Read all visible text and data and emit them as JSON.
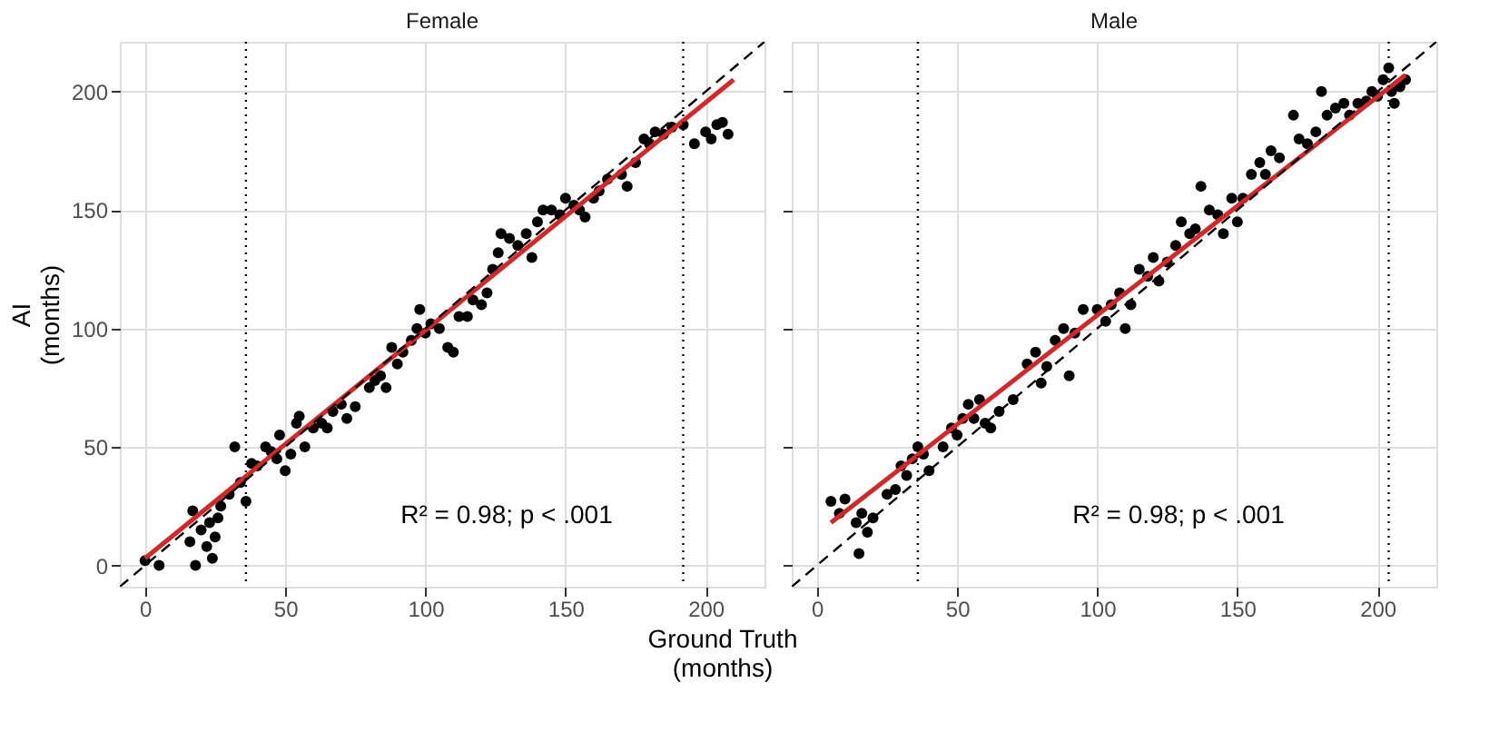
{
  "chart_data": [
    {
      "type": "scatter",
      "title": "Female",
      "ylabel": [
        "AI",
        "(months)"
      ],
      "xlabel": [
        "Ground Truth",
        "(months)"
      ],
      "xlim": [
        -9,
        221
      ],
      "ylim": [
        -9,
        221
      ],
      "xticks": [
        0,
        50,
        100,
        150,
        200
      ],
      "yticks": [
        0,
        50,
        100,
        150,
        200
      ],
      "grid": true,
      "annotations": [
        "R² = 0.98; p < .001"
      ],
      "series": [
        {
          "color": "#000000",
          "marker": "circle",
          "x": [
            0,
            5,
            16,
            17,
            18,
            20,
            22,
            23,
            24,
            25,
            26,
            27,
            30,
            32,
            34,
            36,
            38,
            40,
            43,
            45,
            47,
            48,
            50,
            52,
            54,
            55,
            57,
            60,
            63,
            65,
            67,
            70,
            72,
            75,
            80,
            82,
            84,
            86,
            88,
            90,
            92,
            95,
            97,
            98,
            100,
            102,
            105,
            108,
            110,
            112,
            115,
            117,
            120,
            122,
            124,
            126,
            127,
            130,
            133,
            136,
            138,
            140,
            142,
            145,
            148,
            150,
            153,
            155,
            157,
            160,
            162,
            165,
            170,
            172,
            175,
            178,
            180,
            182,
            185,
            188,
            192,
            196,
            200,
            202,
            204,
            206,
            208
          ],
          "values": [
            2,
            0,
            10,
            23,
            0,
            15,
            8,
            18,
            3,
            12,
            20,
            25,
            30,
            50,
            35,
            27,
            43,
            42,
            50,
            48,
            45,
            55,
            40,
            47,
            60,
            63,
            50,
            58,
            60,
            58,
            65,
            68,
            62,
            67,
            75,
            78,
            80,
            75,
            92,
            85,
            90,
            95,
            100,
            108,
            98,
            102,
            100,
            92,
            90,
            105,
            105,
            112,
            110,
            115,
            125,
            132,
            140,
            138,
            135,
            140,
            130,
            145,
            150,
            150,
            148,
            155,
            152,
            150,
            147,
            155,
            158,
            163,
            165,
            160,
            170,
            180,
            178,
            183,
            182,
            185,
            186,
            178,
            183,
            180,
            186,
            187,
            182
          ]
        },
        {
          "type": "line",
          "color": "#d62728",
          "line_style": "solid",
          "x": [
            0,
            210
          ],
          "values": [
            3,
            205
          ]
        },
        {
          "type": "line",
          "color": "#000000",
          "line_style": "dashed",
          "x": [
            -9,
            221
          ],
          "values": [
            -9,
            221
          ]
        }
      ],
      "ref_lines": [
        {
          "axis": "x",
          "value": 36,
          "line_style": "dotted"
        },
        {
          "axis": "x",
          "value": 192,
          "line_style": "dotted"
        }
      ]
    },
    {
      "type": "scatter",
      "title": "Male",
      "xlim": [
        -9,
        221
      ],
      "ylim": [
        -9,
        221
      ],
      "xticks": [
        0,
        50,
        100,
        150,
        200
      ],
      "yticks": [
        0,
        50,
        100,
        150,
        200
      ],
      "grid": true,
      "tick_labels": "x",
      "annotations": [
        "R² = 0.98; p < .001"
      ],
      "series": [
        {
          "color": "#000000",
          "marker": "circle",
          "x": [
            5,
            8,
            10,
            14,
            15,
            16,
            18,
            20,
            25,
            28,
            30,
            32,
            34,
            36,
            38,
            40,
            45,
            48,
            50,
            52,
            54,
            56,
            58,
            60,
            62,
            65,
            70,
            75,
            78,
            80,
            82,
            85,
            88,
            90,
            92,
            95,
            100,
            103,
            105,
            108,
            110,
            112,
            115,
            118,
            120,
            122,
            125,
            128,
            130,
            133,
            135,
            137,
            140,
            143,
            145,
            148,
            150,
            152,
            155,
            158,
            160,
            162,
            165,
            170,
            172,
            175,
            178,
            180,
            182,
            185,
            188,
            190,
            193,
            196,
            198,
            200,
            202,
            204,
            205,
            206,
            208,
            210
          ],
          "values": [
            27,
            22,
            28,
            18,
            5,
            22,
            14,
            20,
            30,
            32,
            42,
            38,
            45,
            50,
            47,
            40,
            50,
            58,
            55,
            62,
            68,
            62,
            70,
            60,
            58,
            65,
            70,
            85,
            90,
            77,
            84,
            95,
            100,
            80,
            98,
            108,
            108,
            103,
            110,
            115,
            100,
            110,
            125,
            122,
            130,
            120,
            128,
            135,
            145,
            140,
            142,
            160,
            150,
            148,
            140,
            155,
            145,
            155,
            165,
            170,
            165,
            175,
            172,
            190,
            180,
            178,
            183,
            200,
            190,
            193,
            195,
            190,
            195,
            196,
            200,
            198,
            205,
            210,
            200,
            195,
            202,
            205
          ]
        },
        {
          "type": "line",
          "color": "#d62728",
          "line_style": "solid",
          "x": [
            5,
            210
          ],
          "values": [
            18,
            207
          ]
        },
        {
          "type": "line",
          "color": "#000000",
          "line_style": "dashed",
          "x": [
            -9,
            221
          ],
          "values": [
            -9,
            221
          ]
        }
      ],
      "ref_lines": [
        {
          "axis": "x",
          "value": 36,
          "line_style": "dotted"
        },
        {
          "axis": "x",
          "value": 204,
          "line_style": "dotted"
        }
      ]
    }
  ]
}
